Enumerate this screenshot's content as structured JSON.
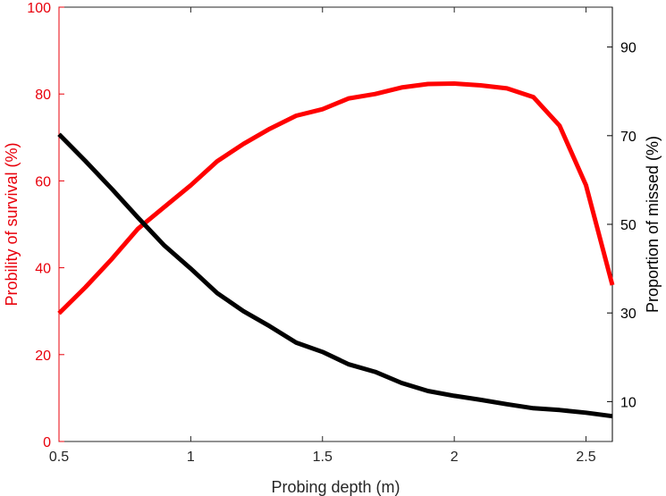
{
  "chart_data": {
    "type": "line",
    "title": "",
    "xlabel": "Probing depth (m)",
    "ylabel_left": "Probility of survival (%)",
    "ylabel_right": "Proportion of missed (%)",
    "xlim": [
      0.5,
      2.6
    ],
    "ylim_left": [
      0,
      100
    ],
    "ylim_right": [
      1,
      99
    ],
    "xticks": [
      0.5,
      1,
      1.5,
      2,
      2.5
    ],
    "xtick_labels": [
      "0.5",
      "1",
      "1.5",
      "2",
      "2.5"
    ],
    "yticks_left": [
      0,
      20,
      40,
      60,
      80,
      100
    ],
    "ytick_labels_left": [
      "0",
      "20",
      "40",
      "60",
      "80",
      "100"
    ],
    "yticks_right": [
      10,
      30,
      50,
      70,
      90
    ],
    "ytick_labels_right": [
      "10",
      "30",
      "50",
      "70",
      "90"
    ],
    "grid": false,
    "legend": "none",
    "colors": {
      "left_axis": "#e8000b",
      "right_axis": "#000000",
      "frame": "#262626"
    },
    "series": [
      {
        "axis": "left",
        "color": "#ff0000",
        "x": [
          0.5,
          0.6,
          0.7,
          0.8,
          0.9,
          1.0,
          1.1,
          1.2,
          1.3,
          1.4,
          1.5,
          1.6,
          1.7,
          1.8,
          1.9,
          2.0,
          2.1,
          2.2,
          2.3,
          2.4,
          2.5,
          2.6
        ],
        "values": [
          29.5,
          35.5,
          42,
          49,
          54,
          59,
          64.5,
          68.5,
          72,
          75,
          76.5,
          79,
          80,
          81.5,
          82.3,
          82.4,
          82,
          81.3,
          79.3,
          72.7,
          59,
          36
        ]
      },
      {
        "axis": "right",
        "color": "#000000",
        "x": [
          0.5,
          0.6,
          0.7,
          0.8,
          0.9,
          1.0,
          1.1,
          1.2,
          1.3,
          1.4,
          1.5,
          1.6,
          1.7,
          1.8,
          1.9,
          2.0,
          2.1,
          2.2,
          2.3,
          2.4,
          2.5,
          2.6
        ],
        "values": [
          70.3,
          64.3,
          58,
          51.5,
          45.2,
          40,
          34.5,
          30.4,
          27,
          23.3,
          21.2,
          18.4,
          16.7,
          14.2,
          12.4,
          11.3,
          10.4,
          9.4,
          8.5,
          8.1,
          7.5,
          6.7
        ]
      }
    ]
  }
}
